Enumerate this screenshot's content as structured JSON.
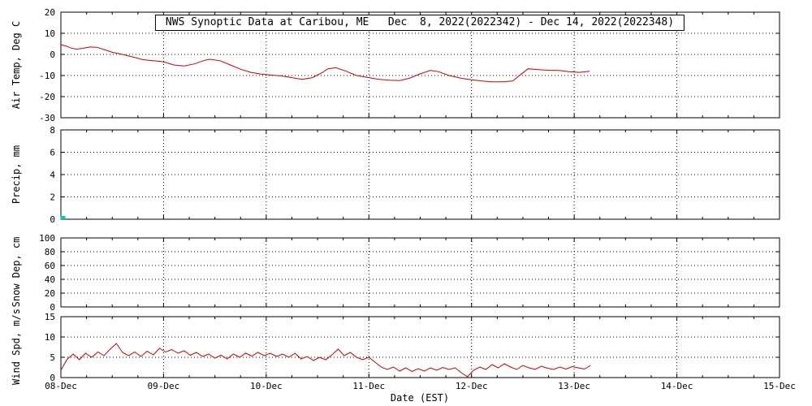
{
  "title": "NWS Synoptic Data at Caribou, ME   Dec  8, 2022(2022342) - Dec 14, 2022(2022348)",
  "xlabel": "Date (EST)",
  "colors": {
    "series": "#cc0000",
    "precip_marker": "#00c8c8",
    "axis": "#000000",
    "background": "#ffffff"
  },
  "x_axis": {
    "tick_labels": [
      "08-Dec",
      "09-Dec",
      "10-Dec",
      "11-Dec",
      "12-Dec",
      "13-Dec",
      "14-Dec",
      "15-Dec"
    ],
    "range_days": [
      0,
      7
    ]
  },
  "chart_data": [
    {
      "type": "line",
      "name": "air-temp",
      "ylabel": "Air Temp, Deg C",
      "ylim": [
        -30,
        20
      ],
      "yticks": [
        -30,
        -20,
        -10,
        0,
        10,
        20
      ],
      "grid": true,
      "series": [
        {
          "name": "air_temp_c",
          "color": "#cc0000",
          "x": [
            0,
            0.05,
            0.1,
            0.15,
            0.2,
            0.28,
            0.35,
            0.42,
            0.5,
            0.6,
            0.7,
            0.8,
            0.9,
            1,
            1.1,
            1.2,
            1.3,
            1.4,
            1.45,
            1.55,
            1.65,
            1.75,
            1.85,
            1.95,
            2.05,
            2.15,
            2.25,
            2.35,
            2.45,
            2.55,
            2.6,
            2.68,
            2.78,
            2.88,
            3,
            3.1,
            3.2,
            3.3,
            3.4,
            3.5,
            3.6,
            3.68,
            3.78,
            3.9,
            4,
            4.1,
            4.2,
            4.3,
            4.4,
            4.48,
            4.55,
            4.65,
            4.75,
            4.85,
            4.95,
            5.05,
            5.15
          ],
          "y": [
            4.5,
            4,
            3,
            2.5,
            2.8,
            3.5,
            3.4,
            2.3,
            1,
            0,
            -1.2,
            -2.5,
            -3,
            -3.5,
            -5,
            -5.5,
            -4.5,
            -2.8,
            -2.3,
            -3,
            -5,
            -7,
            -8.5,
            -9.3,
            -9.8,
            -10.2,
            -11,
            -11.8,
            -11,
            -8.5,
            -6.8,
            -6.3,
            -8,
            -10,
            -11,
            -11.8,
            -12.2,
            -12.4,
            -11.2,
            -9.2,
            -7.6,
            -8.2,
            -10,
            -11.3,
            -12,
            -12.6,
            -13,
            -13,
            -12.6,
            -9.5,
            -6.8,
            -7.2,
            -7.5,
            -7.6,
            -8.2,
            -8.5,
            -8
          ]
        }
      ]
    },
    {
      "type": "line",
      "name": "precip",
      "ylabel": "Precip, mm",
      "ylim": [
        0,
        8
      ],
      "yticks": [
        0,
        2,
        4,
        6,
        8
      ],
      "grid": true,
      "series": [
        {
          "name": "precip_mm",
          "color": "#00c8c8",
          "style": "impulse",
          "x": [
            0.02
          ],
          "y": [
            0.3
          ]
        }
      ]
    },
    {
      "type": "line",
      "name": "snow-depth",
      "ylabel": "Snow Dep, cm",
      "ylim": [
        0,
        100
      ],
      "yticks": [
        0,
        20,
        40,
        60,
        80,
        100
      ],
      "grid": true,
      "series": [
        {
          "name": "snow_depth_cm",
          "color": "#cc0000",
          "x": [],
          "y": []
        }
      ]
    },
    {
      "type": "line",
      "name": "wind-speed",
      "ylabel": "Wind Spd, m/s",
      "ylim": [
        0,
        15
      ],
      "yticks": [
        0,
        5,
        10,
        15
      ],
      "grid": true,
      "series": [
        {
          "name": "wind_spd_ms",
          "color": "#cc0000",
          "x": [
            0,
            0.06,
            0.12,
            0.18,
            0.24,
            0.3,
            0.36,
            0.42,
            0.48,
            0.54,
            0.6,
            0.66,
            0.72,
            0.78,
            0.84,
            0.9,
            0.96,
            1.02,
            1.08,
            1.14,
            1.2,
            1.26,
            1.32,
            1.38,
            1.44,
            1.5,
            1.56,
            1.62,
            1.68,
            1.74,
            1.8,
            1.86,
            1.92,
            1.98,
            2.04,
            2.1,
            2.16,
            2.22,
            2.28,
            2.34,
            2.4,
            2.46,
            2.52,
            2.58,
            2.64,
            2.7,
            2.76,
            2.82,
            2.88,
            2.94,
            3,
            3.06,
            3.12,
            3.18,
            3.24,
            3.3,
            3.36,
            3.42,
            3.48,
            3.54,
            3.6,
            3.66,
            3.72,
            3.78,
            3.84,
            3.9,
            3.96,
            4.02,
            4.08,
            4.14,
            4.2,
            4.26,
            4.32,
            4.38,
            4.44,
            4.5,
            4.56,
            4.62,
            4.68,
            4.74,
            4.8,
            4.86,
            4.92,
            4.98,
            5.04,
            5.1,
            5.16
          ],
          "y": [
            1.8,
            4.5,
            5.8,
            4.4,
            6,
            5,
            6.3,
            5.4,
            7,
            8.4,
            6.2,
            5.4,
            6.3,
            5.2,
            6.5,
            5.6,
            7.2,
            6.3,
            6.9,
            6,
            6.6,
            5.5,
            6.2,
            5.2,
            5.8,
            4.8,
            5.5,
            4.6,
            5.8,
            5,
            6,
            5.3,
            6.2,
            5.4,
            6,
            5.2,
            5.8,
            5,
            6,
            4.6,
            5.2,
            4.2,
            5,
            4.4,
            5.6,
            7,
            5.4,
            6.2,
            5,
            4.4,
            5,
            3.8,
            2.6,
            2,
            2.6,
            1.6,
            2.4,
            1.5,
            2.2,
            1.6,
            2.4,
            1.8,
            2.5,
            2,
            2.4,
            1.2,
            0.2,
            1.8,
            2.6,
            2,
            3.2,
            2.4,
            3.4,
            2.6,
            2,
            3,
            2.4,
            2,
            2.8,
            2.3,
            2,
            2.6,
            2.1,
            2.7,
            2.4,
            2.1,
            3
          ]
        }
      ]
    }
  ]
}
